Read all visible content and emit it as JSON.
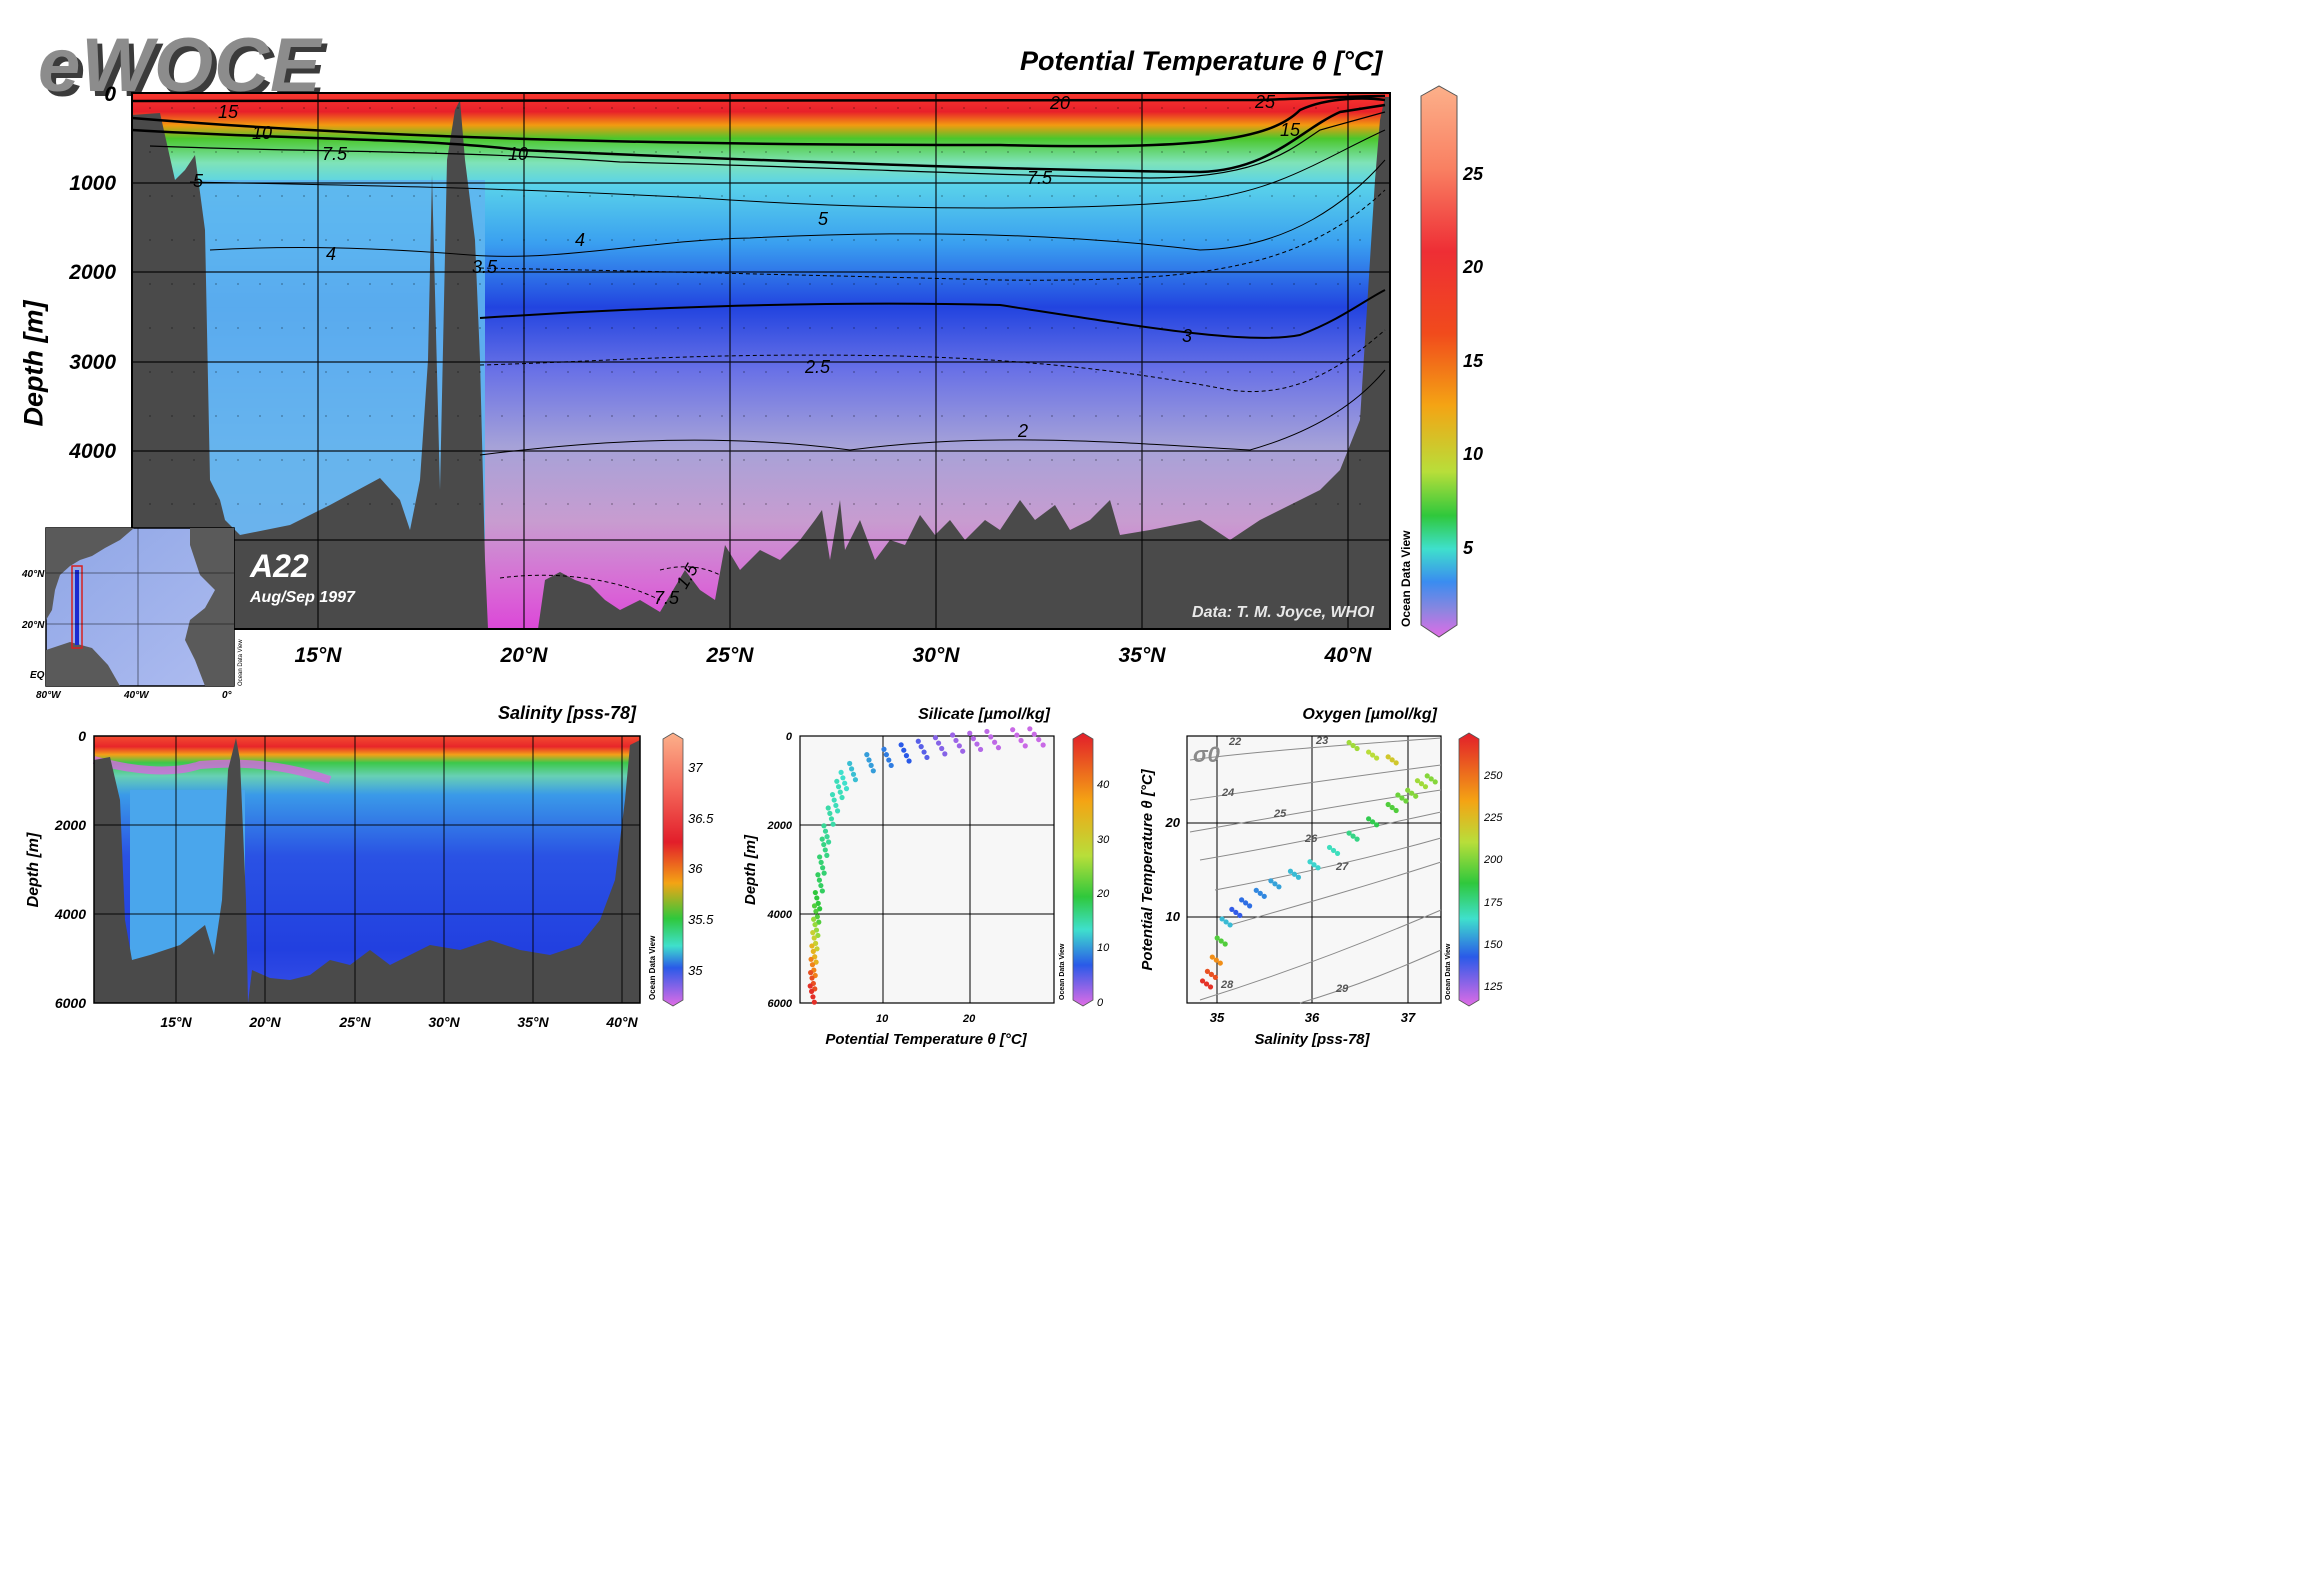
{
  "logo": "eWOCE",
  "main": {
    "title": "Potential Temperature θ [°C]",
    "ylabel": "Depth [m]",
    "y_ticks": [
      "0",
      "1000",
      "2000",
      "3000",
      "4000"
    ],
    "x_ticks": [
      "15°N",
      "20°N",
      "25°N",
      "30°N",
      "35°N",
      "40°N"
    ],
    "contour_labels": [
      "15",
      "10",
      "7.5",
      "5",
      "10",
      "20",
      "25",
      "15",
      "7.5",
      "5",
      "4",
      "4",
      "3.5",
      "3",
      "2.5",
      "2",
      "1.5",
      "7.5"
    ],
    "section_name": "A22",
    "section_date": "Aug/Sep 1997",
    "credit": "Data: T. M. Joyce, WHOI",
    "watermark": "Ocean Data View",
    "colorbar_ticks": [
      "25",
      "20",
      "15",
      "10",
      "5"
    ]
  },
  "inset_map": {
    "lat_labels": [
      "40°N",
      "20°N",
      "EQ"
    ],
    "lon_labels": [
      "80°W",
      "40°W",
      "0°"
    ],
    "watermark": "Ocean Data View"
  },
  "salinity": {
    "title": "Salinity [pss-78]",
    "ylabel": "Depth [m]",
    "y_ticks": [
      "0",
      "2000",
      "4000",
      "6000"
    ],
    "x_ticks": [
      "15°N",
      "20°N",
      "25°N",
      "30°N",
      "35°N",
      "40°N"
    ],
    "colorbar_ticks": [
      "37",
      "36.5",
      "36",
      "35.5",
      "35"
    ],
    "watermark": "Ocean Data View"
  },
  "silicate": {
    "title": "Silicate [µmol/kg]",
    "xlabel": "Potential Temperature θ [°C]",
    "ylabel": "Depth [m]",
    "x_ticks": [
      "10",
      "20"
    ],
    "y_ticks": [
      "0",
      "2000",
      "4000",
      "6000"
    ],
    "colorbar_ticks": [
      "40",
      "30",
      "20",
      "10",
      "0"
    ],
    "watermark": "Ocean Data View"
  },
  "oxygen": {
    "title": "Oxygen [µmol/kg]",
    "xlabel": "Salinity [pss-78]",
    "ylabel": "Potential Temperature θ [°C]",
    "x_ticks": [
      "35",
      "36",
      "37"
    ],
    "y_ticks": [
      "20",
      "10"
    ],
    "sigma_label": "σ0",
    "isopycnal_labels": [
      "22",
      "23",
      "24",
      "25",
      "26",
      "27",
      "28",
      "29"
    ],
    "colorbar_ticks": [
      "250",
      "225",
      "200",
      "175",
      "150",
      "125"
    ],
    "watermark": "Ocean Data View"
  },
  "chart_data": [
    {
      "type": "heatmap",
      "title": "Potential Temperature θ [°C]",
      "xlabel": "",
      "ylabel": "Depth [m]",
      "xlim": [
        10.5,
        41
      ],
      "ylim": [
        6000,
        0
      ],
      "x_ticks": [
        15,
        20,
        25,
        30,
        35,
        40
      ],
      "y_ticks": [
        0,
        1000,
        2000,
        3000,
        4000
      ],
      "color_range": [
        1,
        29
      ],
      "contour_levels": [
        1.5,
        2,
        2.5,
        3,
        3.5,
        4,
        5,
        7.5,
        10,
        15,
        20,
        25
      ],
      "profile_depths": [
        0,
        100,
        300,
        500,
        700,
        900,
        1200,
        1600,
        2000,
        2500,
        3000,
        3500,
        4000,
        4500,
        5000,
        5500,
        6000
      ],
      "profile_temperature": [
        27,
        24,
        18,
        14,
        11,
        8.5,
        6,
        4.8,
        4.0,
        3.3,
        2.7,
        2.3,
        1.9,
        1.7,
        1.6,
        1.5,
        1.4
      ]
    },
    {
      "type": "heatmap",
      "title": "Salinity [pss-78]",
      "ylabel": "Depth [m]",
      "xlim": [
        10.5,
        41
      ],
      "ylim": [
        6000,
        0
      ],
      "color_range": [
        34.8,
        37.3
      ],
      "profile_depths": [
        0,
        200,
        400,
        600,
        800,
        1000,
        1500,
        2000,
        3000,
        4000,
        5000,
        6000
      ],
      "profile_salinity": [
        36.9,
        36.6,
        36.1,
        35.6,
        35.3,
        35.1,
        35.05,
        35.0,
        34.95,
        34.92,
        34.89,
        34.88
      ]
    },
    {
      "type": "scatter",
      "title": "Silicate [µmol/kg]",
      "xlabel": "Potential Temperature θ [°C]",
      "ylabel": "Depth [m]",
      "xlim": [
        0,
        29
      ],
      "ylim": [
        6000,
        0
      ],
      "color_range": [
        0,
        48
      ],
      "points_theta": [
        27,
        25,
        22,
        20,
        18,
        16,
        14,
        12,
        10,
        8,
        6,
        5,
        4.5,
        4,
        3.5,
        3,
        2.8,
        2.5,
        2.3,
        2,
        1.9,
        1.8,
        1.7,
        1.6,
        1.5,
        1.45,
        1.4
      ],
      "points_depth": [
        20,
        40,
        80,
        120,
        160,
        220,
        300,
        380,
        480,
        600,
        800,
        1000,
        1200,
        1500,
        1800,
        2200,
        2500,
        2900,
        3300,
        3700,
        4000,
        4300,
        4600,
        4900,
        5200,
        5500,
        5800
      ],
      "points_silicate": [
        1,
        1,
        1.5,
        2,
        3,
        4,
        6,
        8,
        10,
        12,
        14,
        16,
        17,
        17,
        18,
        19,
        20,
        21,
        22,
        24,
        26,
        30,
        34,
        38,
        42,
        45,
        47
      ]
    },
    {
      "type": "scatter",
      "title": "Oxygen [µmol/kg]",
      "xlabel": "Salinity [pss-78]",
      "ylabel": "Potential Temperature θ [°C]",
      "xlim": [
        34.7,
        37.3
      ],
      "ylim": [
        0,
        28
      ],
      "color_range": [
        115,
        272
      ],
      "points_salinity": [
        34.9,
        34.95,
        35.0,
        35.05,
        35.1,
        35.2,
        35.3,
        35.45,
        35.6,
        35.8,
        36.0,
        36.2,
        36.4,
        36.6,
        36.8,
        36.9,
        37.0,
        37.1,
        37.2,
        36.8,
        36.6,
        36.4
      ],
      "points_theta": [
        2.0,
        3.0,
        4.5,
        6.5,
        8.5,
        9.5,
        10.5,
        11.5,
        12.5,
        13.5,
        14.5,
        16.0,
        17.5,
        19.0,
        20.5,
        21.5,
        22.0,
        23.0,
        23.5,
        25.5,
        26.0,
        27.0
      ],
      "points_oxygen": [
        268,
        262,
        250,
        200,
        160,
        140,
        145,
        150,
        155,
        160,
        165,
        170,
        180,
        190,
        200,
        205,
        210,
        215,
        210,
        230,
        220,
        215
      ]
    }
  ]
}
